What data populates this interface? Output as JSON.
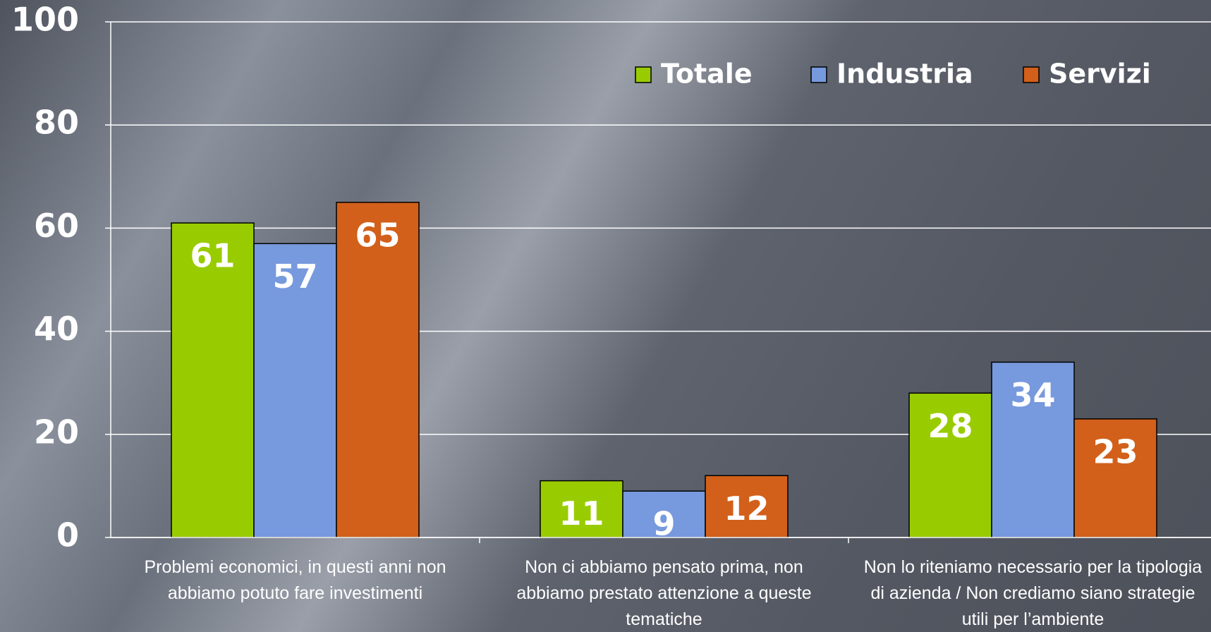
{
  "chart_data": {
    "type": "bar",
    "categories": [
      "Problemi economici, in questi anni non abbiamo potuto fare investimenti",
      "Non ci abbiamo pensato prima, non abbiamo prestato attenzione a queste tematiche",
      "Non lo riteniamo necessario per la tipologia di azienda / Non crediamo siano strategie utili per l’ambiente"
    ],
    "series": [
      {
        "name": "Totale",
        "color": "#99cc00",
        "values": [
          61,
          11,
          28
        ]
      },
      {
        "name": "Industria",
        "color": "#7799dd",
        "values": [
          57,
          9,
          34
        ]
      },
      {
        "name": "Servizi",
        "color": "#d2601a",
        "values": [
          65,
          12,
          23
        ]
      }
    ],
    "ylim": [
      0,
      100
    ],
    "yticks": [
      0,
      20,
      40,
      60,
      80,
      100
    ],
    "grid": true,
    "legend": "top-right"
  }
}
